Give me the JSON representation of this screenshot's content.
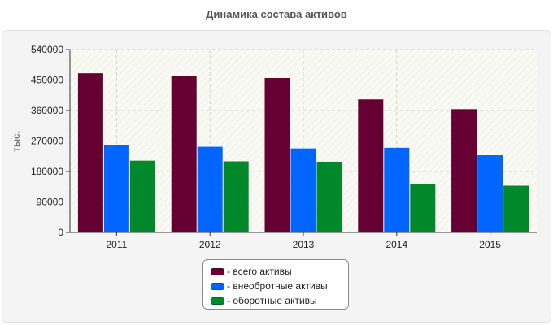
{
  "chart_data": {
    "type": "bar",
    "title": "Динамика состава активов",
    "ylabel": "тыс.",
    "xlabel": "",
    "categories": [
      "2011",
      "2012",
      "2013",
      "2014",
      "2015"
    ],
    "ylim": [
      0,
      540000
    ],
    "yticks": [
      "0",
      "90000",
      "180000",
      "270000",
      "360000",
      "450000",
      "540000"
    ],
    "grid": true,
    "legend_position": "bottom-center",
    "series": [
      {
        "name": "- всего активы",
        "color": "#660033",
        "values": [
          470000,
          463000,
          456000,
          393000,
          364000
        ]
      },
      {
        "name": "- внеобротные активы",
        "color": "#0066ff",
        "values": [
          258000,
          253000,
          248000,
          250000,
          228000
        ]
      },
      {
        "name": "- оборотные активы",
        "color": "#00882b",
        "values": [
          212000,
          210000,
          209000,
          143000,
          138000
        ]
      }
    ]
  }
}
